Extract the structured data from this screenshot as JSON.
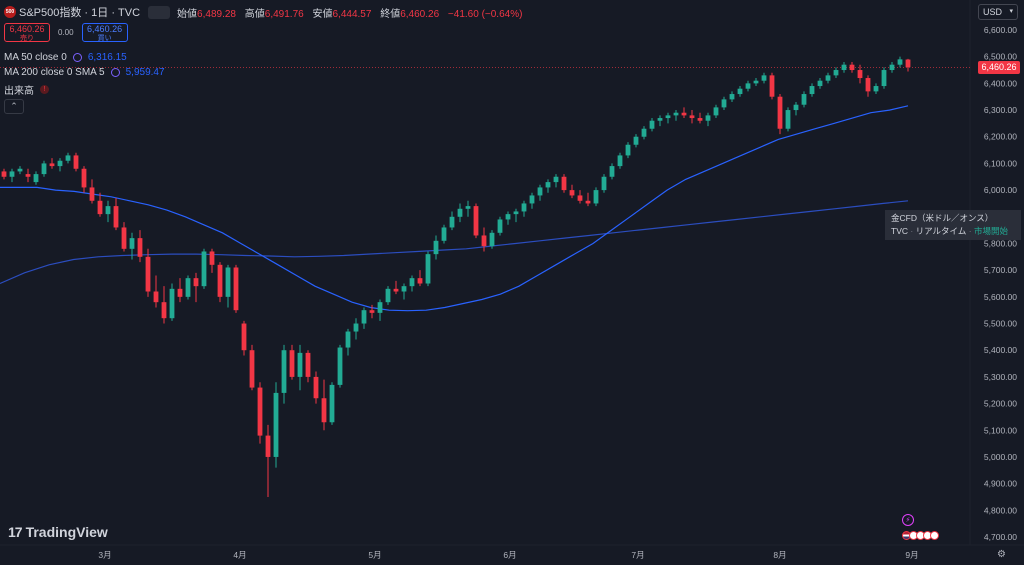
{
  "header": {
    "symbol_badge": "500",
    "title": "S&P500指数 · 1日 · TVC",
    "ohlc": {
      "open_label": "始値",
      "open": "6,489.28",
      "high_label": "高値",
      "high": "6,491.76",
      "low_label": "安値",
      "low": "6,444.57",
      "close_label": "終値",
      "close": "6,460.26",
      "change": "−41.60 (−0.64%)"
    }
  },
  "trade": {
    "sell_price": "6,460.26",
    "sell_label": "売り",
    "spread": "0.00",
    "buy_price": "6,460.26",
    "buy_label": "買い"
  },
  "indicators": {
    "ma50": {
      "label": "MA 50 close 0",
      "value": "6,316.15"
    },
    "ma200": {
      "label": "MA 200 close 0 SMA 5",
      "value": "5,959.47"
    },
    "volume": {
      "label": "出来高",
      "badge": "!"
    }
  },
  "collapse_label": "⌃",
  "currency": "USD",
  "last_price_label": "6,460.26",
  "tooltip": {
    "line1": "金CFD（米ドル／オンス）",
    "line2_left": "TVC",
    "line2_mid": "リアルタイム",
    "line2_right": "市場開始",
    "sep": "·"
  },
  "brand": {
    "mark": "17",
    "name": "TradingView"
  },
  "colors": {
    "background": "#161a25",
    "up": "#22ab94",
    "down": "#f23645",
    "ma50": "#2962ff",
    "ma200": "#2b4dbf",
    "grid": "#1e222d",
    "axis_text": "#b2b5be"
  },
  "icons": {
    "settings": "gear-icon",
    "event": "lightning-icon",
    "earnings": "flag-icon"
  },
  "chart_data": {
    "type": "candlestick",
    "y_ticks": [
      "6,600.00",
      "6,500.00",
      "6,400.00",
      "6,300.00",
      "6,200.00",
      "6,100.00",
      "6,000.00",
      "5,900.00",
      "5,800.00",
      "5,700.00",
      "5,600.00",
      "5,500.00",
      "5,400.00",
      "5,300.00",
      "5,200.00",
      "5,100.00",
      "5,000.00",
      "4,900.00",
      "4,800.00",
      "4,700.00"
    ],
    "y_tick_values": [
      6600,
      6500,
      6400,
      6300,
      6200,
      6100,
      6000,
      5900,
      5800,
      5700,
      5600,
      5500,
      5400,
      5300,
      5200,
      5100,
      5000,
      4900,
      4800,
      4700
    ],
    "x_ticks": [
      "3月",
      "4月",
      "5月",
      "6月",
      "7月",
      "8月",
      "9月"
    ],
    "ylim": [
      4650,
      6650
    ],
    "last_price": 6460.26,
    "candles": [
      [
        6070,
        6080,
        6040,
        6050
      ],
      [
        6050,
        6080,
        6030,
        6070
      ],
      [
        6070,
        6090,
        6060,
        6080
      ],
      [
        6060,
        6080,
        6030,
        6050
      ],
      [
        6030,
        6070,
        6020,
        6060
      ],
      [
        6060,
        6110,
        6050,
        6100
      ],
      [
        6100,
        6120,
        6080,
        6090
      ],
      [
        6090,
        6120,
        6070,
        6110
      ],
      [
        6110,
        6140,
        6100,
        6130
      ],
      [
        6130,
        6140,
        6070,
        6080
      ],
      [
        6080,
        6090,
        5990,
        6010
      ],
      [
        6010,
        6040,
        5950,
        5960
      ],
      [
        5960,
        5990,
        5900,
        5910
      ],
      [
        5910,
        5960,
        5880,
        5940
      ],
      [
        5940,
        5970,
        5850,
        5860
      ],
      [
        5860,
        5880,
        5770,
        5780
      ],
      [
        5780,
        5840,
        5740,
        5820
      ],
      [
        5820,
        5850,
        5730,
        5750
      ],
      [
        5750,
        5780,
        5600,
        5620
      ],
      [
        5620,
        5680,
        5560,
        5580
      ],
      [
        5580,
        5640,
        5500,
        5520
      ],
      [
        5520,
        5650,
        5510,
        5630
      ],
      [
        5630,
        5670,
        5580,
        5600
      ],
      [
        5600,
        5680,
        5590,
        5670
      ],
      [
        5670,
        5690,
        5580,
        5640
      ],
      [
        5640,
        5780,
        5630,
        5770
      ],
      [
        5770,
        5780,
        5690,
        5720
      ],
      [
        5720,
        5730,
        5580,
        5600
      ],
      [
        5600,
        5720,
        5560,
        5710
      ],
      [
        5710,
        5720,
        5540,
        5550
      ],
      [
        5500,
        5510,
        5380,
        5400
      ],
      [
        5400,
        5420,
        5250,
        5260
      ],
      [
        5260,
        5280,
        5050,
        5080
      ],
      [
        5080,
        5120,
        4850,
        5000
      ],
      [
        5000,
        5280,
        4960,
        5240
      ],
      [
        5240,
        5420,
        5200,
        5400
      ],
      [
        5400,
        5420,
        5290,
        5300
      ],
      [
        5300,
        5420,
        5250,
        5390
      ],
      [
        5390,
        5400,
        5280,
        5300
      ],
      [
        5300,
        5320,
        5200,
        5220
      ],
      [
        5220,
        5290,
        5100,
        5130
      ],
      [
        5130,
        5280,
        5120,
        5270
      ],
      [
        5270,
        5420,
        5260,
        5410
      ],
      [
        5410,
        5480,
        5380,
        5470
      ],
      [
        5470,
        5520,
        5440,
        5500
      ],
      [
        5500,
        5560,
        5480,
        5550
      ],
      [
        5550,
        5570,
        5520,
        5540
      ],
      [
        5540,
        5590,
        5510,
        5580
      ],
      [
        5580,
        5640,
        5570,
        5630
      ],
      [
        5630,
        5660,
        5610,
        5620
      ],
      [
        5620,
        5650,
        5590,
        5640
      ],
      [
        5640,
        5680,
        5620,
        5670
      ],
      [
        5670,
        5700,
        5640,
        5650
      ],
      [
        5650,
        5770,
        5640,
        5760
      ],
      [
        5760,
        5830,
        5740,
        5810
      ],
      [
        5810,
        5870,
        5800,
        5860
      ],
      [
        5860,
        5920,
        5850,
        5900
      ],
      [
        5900,
        5950,
        5880,
        5930
      ],
      [
        5930,
        5960,
        5900,
        5940
      ],
      [
        5940,
        5950,
        5820,
        5830
      ],
      [
        5830,
        5860,
        5770,
        5790
      ],
      [
        5790,
        5850,
        5780,
        5840
      ],
      [
        5840,
        5900,
        5830,
        5890
      ],
      [
        5890,
        5920,
        5870,
        5910
      ],
      [
        5910,
        5930,
        5880,
        5920
      ],
      [
        5920,
        5960,
        5900,
        5950
      ],
      [
        5950,
        5990,
        5930,
        5980
      ],
      [
        5980,
        6020,
        5960,
        6010
      ],
      [
        6010,
        6040,
        5990,
        6030
      ],
      [
        6030,
        6060,
        6010,
        6050
      ],
      [
        6050,
        6060,
        5990,
        6000
      ],
      [
        6000,
        6020,
        5970,
        5980
      ],
      [
        5980,
        6000,
        5950,
        5960
      ],
      [
        5960,
        5990,
        5940,
        5950
      ],
      [
        5950,
        6010,
        5940,
        6000
      ],
      [
        6000,
        6060,
        5990,
        6050
      ],
      [
        6050,
        6100,
        6040,
        6090
      ],
      [
        6090,
        6140,
        6080,
        6130
      ],
      [
        6130,
        6180,
        6120,
        6170
      ],
      [
        6170,
        6210,
        6160,
        6200
      ],
      [
        6200,
        6240,
        6190,
        6230
      ],
      [
        6230,
        6270,
        6220,
        6260
      ],
      [
        6260,
        6280,
        6240,
        6270
      ],
      [
        6270,
        6290,
        6250,
        6280
      ],
      [
        6280,
        6300,
        6260,
        6290
      ],
      [
        6290,
        6310,
        6270,
        6280
      ],
      [
        6280,
        6300,
        6250,
        6270
      ],
      [
        6270,
        6290,
        6250,
        6260
      ],
      [
        6260,
        6290,
        6240,
        6280
      ],
      [
        6280,
        6320,
        6270,
        6310
      ],
      [
        6310,
        6350,
        6300,
        6340
      ],
      [
        6340,
        6370,
        6330,
        6360
      ],
      [
        6360,
        6390,
        6350,
        6380
      ],
      [
        6380,
        6410,
        6370,
        6400
      ],
      [
        6400,
        6420,
        6390,
        6410
      ],
      [
        6410,
        6440,
        6400,
        6430
      ],
      [
        6430,
        6440,
        6340,
        6350
      ],
      [
        6350,
        6360,
        6210,
        6230
      ],
      [
        6230,
        6310,
        6220,
        6300
      ],
      [
        6300,
        6330,
        6280,
        6320
      ],
      [
        6320,
        6370,
        6310,
        6360
      ],
      [
        6360,
        6400,
        6350,
        6390
      ],
      [
        6390,
        6420,
        6380,
        6410
      ],
      [
        6410,
        6440,
        6400,
        6430
      ],
      [
        6430,
        6460,
        6420,
        6450
      ],
      [
        6450,
        6480,
        6440,
        6470
      ],
      [
        6470,
        6480,
        6440,
        6450
      ],
      [
        6450,
        6470,
        6400,
        6420
      ],
      [
        6420,
        6430,
        6350,
        6370
      ],
      [
        6370,
        6400,
        6360,
        6390
      ],
      [
        6390,
        6460,
        6380,
        6450
      ],
      [
        6450,
        6480,
        6440,
        6470
      ],
      [
        6470,
        6500,
        6460,
        6490
      ],
      [
        6489.28,
        6491.76,
        6444.57,
        6460.26
      ]
    ],
    "ma50": [
      6010,
      6010,
      6010,
      6000,
      5995,
      5985,
      5975,
      5960,
      5945,
      5925,
      5900,
      5870,
      5840,
      5800,
      5760,
      5720,
      5680,
      5640,
      5610,
      5580,
      5560,
      5550,
      5548,
      5550,
      5560,
      5575,
      5590,
      5610,
      5640,
      5680,
      5720,
      5760,
      5800,
      5850,
      5900,
      5950,
      6000,
      6040,
      6070,
      6100,
      6130,
      6160,
      6190,
      6210,
      6230,
      6250,
      6270,
      6290,
      6300,
      6316
    ],
    "ma200": [
      5650,
      5690,
      5720,
      5740,
      5750,
      5755,
      5758,
      5760,
      5760,
      5758,
      5755,
      5753,
      5750,
      5752,
      5755,
      5760,
      5765,
      5770,
      5775,
      5780,
      5790,
      5800,
      5810,
      5820,
      5830,
      5840,
      5850,
      5860,
      5870,
      5880,
      5890,
      5900,
      5910,
      5920,
      5930,
      5940,
      5950,
      5960
    ]
  }
}
